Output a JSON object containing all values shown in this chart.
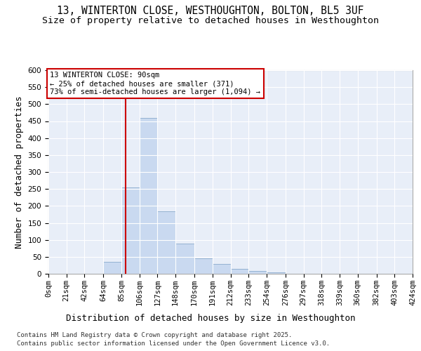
{
  "title_line1": "13, WINTERTON CLOSE, WESTHOUGHTON, BOLTON, BL5 3UF",
  "title_line2": "Size of property relative to detached houses in Westhoughton",
  "xlabel": "Distribution of detached houses by size in Westhoughton",
  "ylabel": "Number of detached properties",
  "footer_line1": "Contains HM Land Registry data © Crown copyright and database right 2025.",
  "footer_line2": "Contains public sector information licensed under the Open Government Licence v3.0.",
  "bar_edges": [
    0,
    21,
    42,
    64,
    85,
    106,
    127,
    148,
    170,
    191,
    212,
    233,
    254,
    276,
    297,
    318,
    339,
    360,
    382,
    403,
    424
  ],
  "bar_heights": [
    0,
    0,
    0,
    35,
    255,
    460,
    185,
    90,
    45,
    30,
    15,
    8,
    5,
    0,
    0,
    0,
    0,
    0,
    0,
    0
  ],
  "bar_color": "#c9d9f0",
  "bar_edge_color": "#7a9fc5",
  "bg_color": "#e8eef8",
  "grid_color": "#ffffff",
  "vline_x": 90,
  "vline_color": "#cc0000",
  "annotation_text": "13 WINTERTON CLOSE: 90sqm\n← 25% of detached houses are smaller (371)\n73% of semi-detached houses are larger (1,094) →",
  "annotation_box_color": "#cc0000",
  "ylim": [
    0,
    600
  ],
  "yticks": [
    0,
    50,
    100,
    150,
    200,
    250,
    300,
    350,
    400,
    450,
    500,
    550,
    600
  ],
  "title_fontsize": 10.5,
  "subtitle_fontsize": 9.5,
  "axis_label_fontsize": 9,
  "tick_fontsize": 7.5,
  "annotation_fontsize": 7.5,
  "footer_fontsize": 6.5
}
